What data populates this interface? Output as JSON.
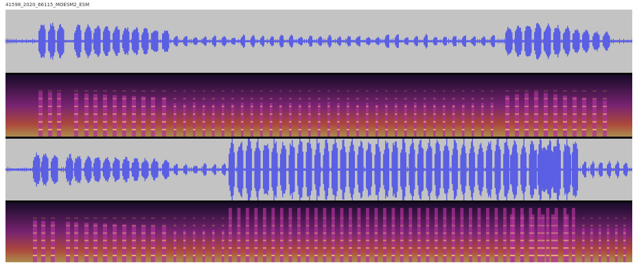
{
  "recording": {
    "title": "41598_2020_66115_MOESM2_ESM"
  },
  "colors": {
    "waveform_fill": "#5a5fe3",
    "waveform_background": "#c3c3c3",
    "spectrogram_low": "#1a0b2e",
    "spectrogram_mid": "#b0309e",
    "spectrogram_high": "#ffd26a",
    "divider": "#0a0a0a"
  },
  "tracks": [
    {
      "kind": "waveform",
      "name": "channel-1-waveform"
    },
    {
      "kind": "spectrogram",
      "name": "channel-1-spectrogram"
    },
    {
      "kind": "waveform",
      "name": "channel-2-waveform"
    },
    {
      "kind": "spectrogram",
      "name": "channel-2-spectrogram"
    }
  ]
}
